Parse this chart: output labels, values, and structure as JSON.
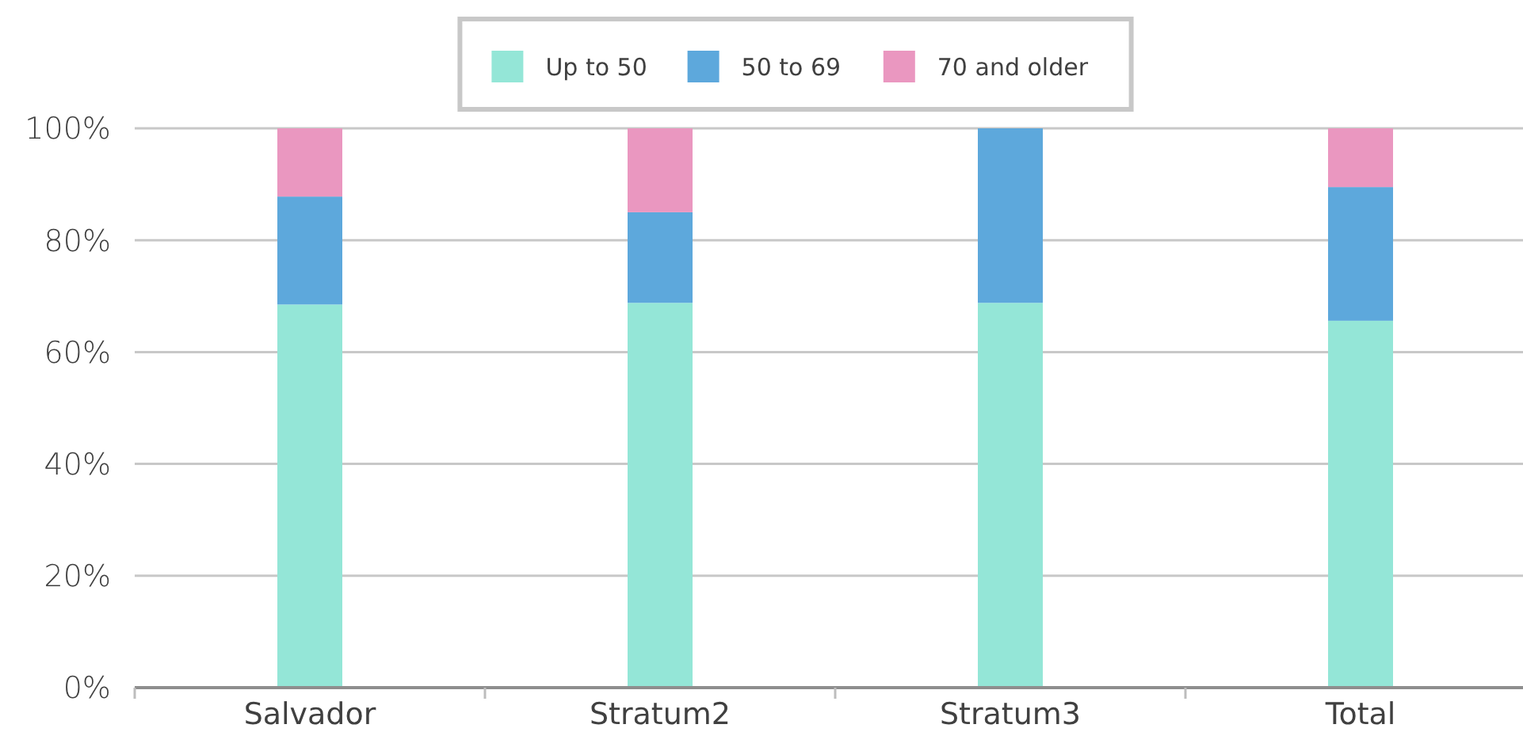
{
  "chart_data": {
    "type": "bar",
    "stacked": true,
    "categories": [
      "Salvador",
      "Stratum2",
      "Stratum3",
      "Total"
    ],
    "series": [
      {
        "name": "Up to 50",
        "color": "#94e6d7",
        "values": [
          68.5,
          68.8,
          68.8,
          65.6
        ]
      },
      {
        "name": "50 to 69",
        "color": "#5da8dc",
        "values": [
          19.3,
          16.2,
          31.2,
          23.9
        ]
      },
      {
        "name": "70 and older",
        "color": "#ea97c0",
        "values": [
          12.2,
          15,
          0,
          10.5
        ]
      }
    ],
    "ylim": [
      0,
      100
    ],
    "yticks": [
      {
        "value": 0,
        "label": "0%"
      },
      {
        "value": 20,
        "label": "20%"
      },
      {
        "value": 40,
        "label": "40%"
      },
      {
        "value": 60,
        "label": "60%"
      },
      {
        "value": 80,
        "label": "80%"
      },
      {
        "value": 100,
        "label": "100%"
      }
    ],
    "grid": "y",
    "legend": "top"
  }
}
